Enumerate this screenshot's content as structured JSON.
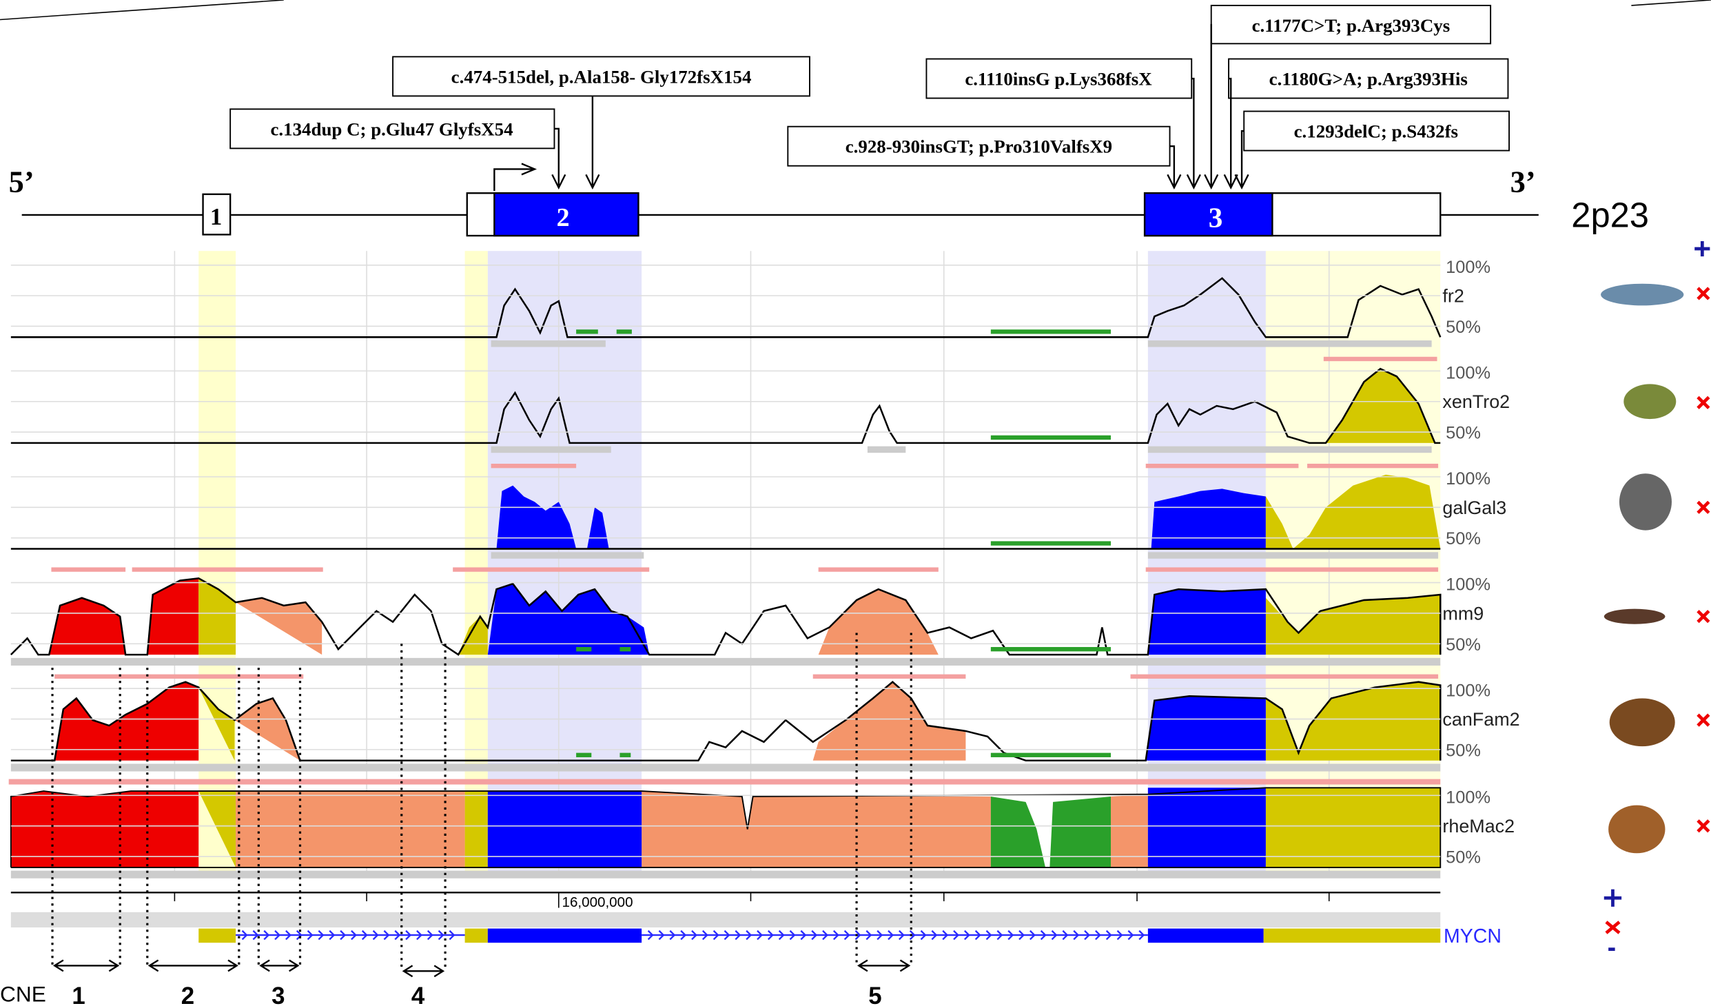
{
  "gene": {
    "five_prime": "5’",
    "three_prime": "3’",
    "locus": "2p23",
    "exons": [
      "1",
      "2",
      "3"
    ]
  },
  "mutations": [
    "c.474-515del, p.Ala158- Gly172fsX154",
    "c.134dup C; p.Glu47 GlyfsX54",
    "c.1177C>T; p.Arg393Cys",
    "c.1110insG p.Lys368fsX",
    "c.1180G>A; p.Arg393His",
    "c.928-930insGT; p.Pro310ValfsX9",
    "c.1293delC; p.S432fs"
  ],
  "tracks": [
    {
      "name": "fr2",
      "max": "100%",
      "min": "50%"
    },
    {
      "name": "xenTro2",
      "max": "100%",
      "min": "50%"
    },
    {
      "name": "galGal3",
      "max": "100%",
      "min": "50%"
    },
    {
      "name": "mm9",
      "max": "100%",
      "min": "50%"
    },
    {
      "name": "canFam2",
      "max": "100%",
      "min": "50%"
    },
    {
      "name": "rheMac2",
      "max": "100%",
      "min": "50%"
    }
  ],
  "axis": {
    "position": "16,000,000"
  },
  "gene_track": {
    "name": "MYCN"
  },
  "cne": {
    "label": "CNE",
    "items": [
      "1",
      "2",
      "3",
      "4",
      "5"
    ]
  }
}
